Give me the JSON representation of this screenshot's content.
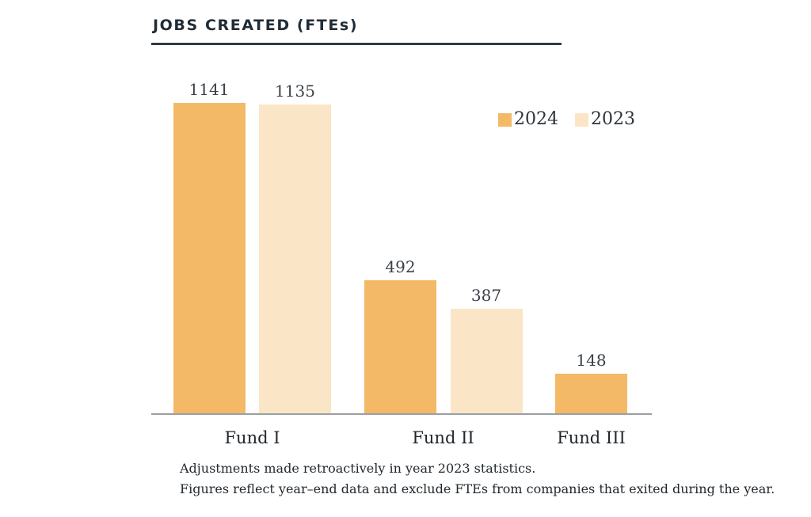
{
  "header": {
    "title": "JOBS CREATED (FTEs)"
  },
  "chart_data": {
    "type": "bar",
    "title": "JOBS CREATED (FTEs)",
    "categories": [
      "Fund I",
      "Fund II",
      "Fund III"
    ],
    "series": [
      {
        "name": "2024",
        "color": "#F3B966",
        "values": [
          1141,
          492,
          148
        ]
      },
      {
        "name": "2023",
        "color": "#FAE6C7",
        "values": [
          1135,
          387,
          null
        ]
      }
    ],
    "value_labels": true,
    "legend_position": "top-right",
    "grid": false,
    "ylim": [
      0,
      1200
    ],
    "axis_line_color": "#9B9FA2"
  },
  "footnotes": [
    "Adjustments made retroactively in year 2023 statistics.",
    "Figures reflect year–end data and exclude FTEs from companies that exited during the year."
  ]
}
